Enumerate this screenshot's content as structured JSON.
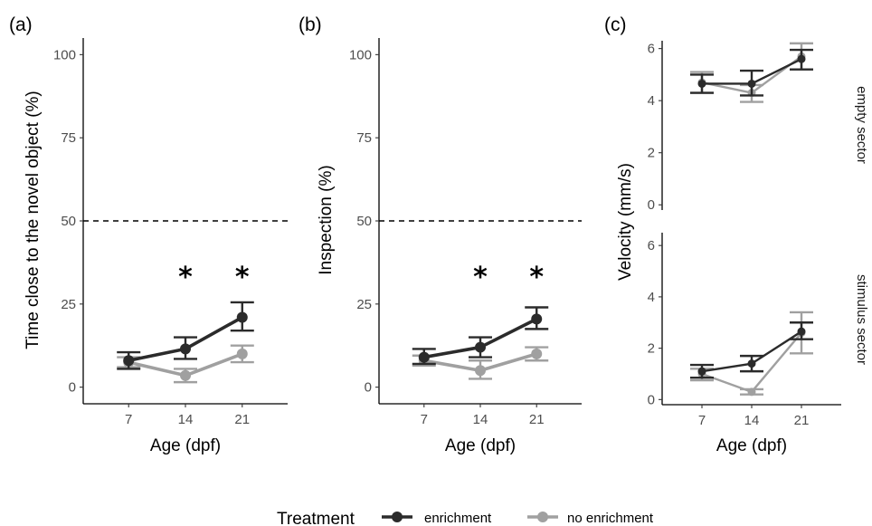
{
  "colors": {
    "enrichment": "#2b2b2b",
    "no_enrichment": "#a0a0a0"
  },
  "legend": {
    "title": "Treatment",
    "items": [
      {
        "label": "enrichment",
        "color": "#2b2b2b"
      },
      {
        "label": "no enrichment",
        "color": "#a0a0a0"
      }
    ]
  },
  "chart_data": [
    {
      "id": "a",
      "panel_label": "(a)",
      "type": "line",
      "x": [
        "7",
        "14",
        "21"
      ],
      "xlabel": "Age (dpf)",
      "ylabel": "Time close to the novel object (%)",
      "ylim": [
        -5,
        105
      ],
      "yticks": [
        "0",
        "25",
        "50",
        "75",
        "100"
      ],
      "reference_line": 50,
      "significance": [
        {
          "x": "14",
          "mark": "*"
        },
        {
          "x": "21",
          "mark": "*"
        }
      ],
      "series": [
        {
          "name": "enrichment",
          "values": [
            8,
            11.5,
            21
          ],
          "lower": [
            5.5,
            8.5,
            17
          ],
          "upper": [
            10.5,
            15,
            25.5
          ]
        },
        {
          "name": "no enrichment",
          "values": [
            7.5,
            3.5,
            10
          ],
          "lower": [
            6,
            1.5,
            7.5
          ],
          "upper": [
            9,
            5.5,
            12.5
          ]
        }
      ]
    },
    {
      "id": "b",
      "panel_label": "(b)",
      "type": "line",
      "x": [
        "7",
        "14",
        "21"
      ],
      "xlabel": "Age (dpf)",
      "ylabel": "Inspection (%)",
      "ylim": [
        -5,
        105
      ],
      "yticks": [
        "0",
        "25",
        "50",
        "75",
        "100"
      ],
      "reference_line": 50,
      "significance": [
        {
          "x": "14",
          "mark": "*"
        },
        {
          "x": "21",
          "mark": "*"
        }
      ],
      "series": [
        {
          "name": "enrichment",
          "values": [
            9,
            12,
            20.5
          ],
          "lower": [
            7,
            9,
            17.5
          ],
          "upper": [
            11.5,
            15,
            24
          ]
        },
        {
          "name": "no enrichment",
          "values": [
            8,
            5,
            10
          ],
          "lower": [
            6.5,
            2.5,
            8
          ],
          "upper": [
            9.5,
            8,
            12
          ]
        }
      ]
    },
    {
      "id": "c",
      "panel_label": "(c)",
      "type": "line",
      "x": [
        "7",
        "14",
        "21"
      ],
      "xlabel": "Age (dpf)",
      "ylabel": "Velocity (mm/s)",
      "facets": [
        {
          "strip": "empty sector",
          "ylim": [
            -0.2,
            6.3
          ],
          "yticks": [
            "0",
            "2",
            "4",
            "6"
          ],
          "series": [
            {
              "name": "enrichment",
              "values": [
                4.65,
                4.65,
                5.6
              ],
              "lower": [
                4.3,
                4.2,
                5.2
              ],
              "upper": [
                5.0,
                5.15,
                5.95
              ]
            },
            {
              "name": "no enrichment",
              "values": [
                4.7,
                4.3,
                5.7
              ],
              "lower": [
                4.3,
                3.95,
                5.2
              ],
              "upper": [
                5.1,
                4.6,
                6.2
              ]
            }
          ]
        },
        {
          "strip": "stimulus sector",
          "ylim": [
            -0.2,
            6.5
          ],
          "yticks": [
            "0",
            "2",
            "4",
            "6"
          ],
          "series": [
            {
              "name": "enrichment",
              "values": [
                1.1,
                1.4,
                2.65
              ],
              "lower": [
                0.85,
                1.1,
                2.35
              ],
              "upper": [
                1.35,
                1.7,
                3.0
              ]
            },
            {
              "name": "no enrichment",
              "values": [
                1.0,
                0.3,
                2.6
              ],
              "lower": [
                0.75,
                0.2,
                1.8
              ],
              "upper": [
                1.2,
                0.4,
                3.4
              ]
            }
          ]
        }
      ]
    }
  ]
}
